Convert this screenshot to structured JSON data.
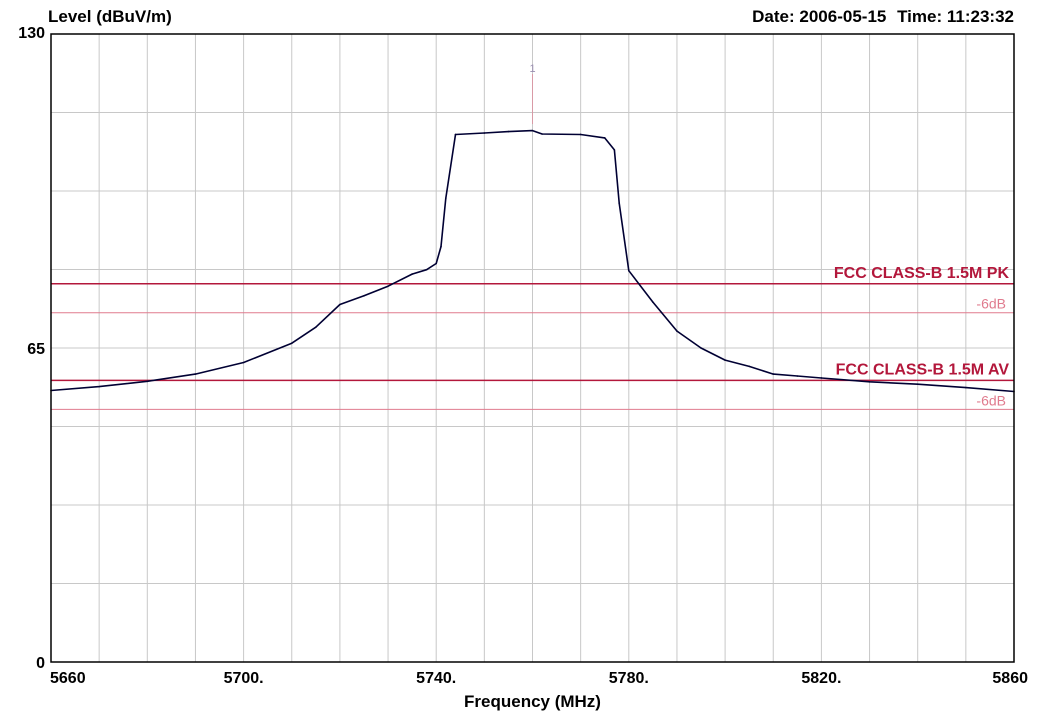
{
  "header": {
    "ylabel": "Level (dBuV/m)",
    "date_label": "Date:",
    "date": "2006-05-15",
    "time_label": "Time:",
    "time": "11:23:32"
  },
  "chart_data": {
    "type": "line",
    "title": "",
    "xlabel": "Frequency (MHz)",
    "ylabel": "Level (dBuV/m)",
    "xlim": [
      5660,
      5860
    ],
    "ylim": [
      0,
      130
    ],
    "x_ticks": [
      5660,
      5700,
      5740,
      5780,
      5820,
      5860
    ],
    "x_tick_labels": [
      "5660",
      "5700.",
      "5740.",
      "5780.",
      "5820.",
      "5860"
    ],
    "y_tick_labels": [
      {
        "value": 130,
        "label": "130"
      },
      {
        "value": 65,
        "label": "65"
      },
      {
        "value": 0,
        "label": "0"
      }
    ],
    "grid": true,
    "grid_x_step": 10,
    "grid_y_step": 16.25,
    "limit_lines": [
      {
        "label": "FCC CLASS-B 1.5M PK",
        "value": 78.3,
        "color": "#b3173b"
      },
      {
        "label": "FCC CLASS-B 1.5M AV",
        "value": 58.3,
        "color": "#b3173b"
      }
    ],
    "margin_lines": [
      {
        "label": "-6dB",
        "value": 72.3,
        "color": "#e07b8e"
      },
      {
        "label": "-6dB",
        "value": 52.3,
        "color": "#e07b8e"
      }
    ],
    "marker": {
      "label": "1",
      "x": 5760
    },
    "series": [
      {
        "color": "#000033",
        "x": [
          5660,
          5670,
          5680,
          5690,
          5700,
          5710,
          5715,
          5720,
          5725,
          5730,
          5735,
          5738,
          5740,
          5741,
          5742,
          5744,
          5750,
          5755,
          5760,
          5762,
          5770,
          5775,
          5777,
          5778,
          5780,
          5785,
          5790,
          5795,
          5800,
          5805,
          5810,
          5815,
          5820,
          5830,
          5840,
          5850,
          5860
        ],
        "values": [
          56.2,
          57.0,
          58.1,
          59.6,
          62.0,
          66.0,
          69.3,
          74.0,
          75.8,
          77.8,
          80.3,
          81.2,
          82.5,
          86.0,
          96.0,
          109.2,
          109.5,
          109.8,
          110.0,
          109.3,
          109.2,
          108.5,
          106.0,
          95.0,
          81.0,
          74.5,
          68.5,
          65.0,
          62.5,
          61.2,
          59.6,
          59.2,
          58.8,
          58.0,
          57.5,
          56.8,
          56.0
        ]
      }
    ]
  }
}
